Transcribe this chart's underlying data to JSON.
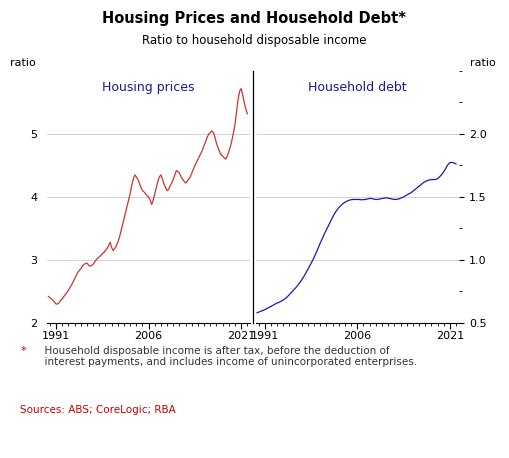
{
  "title": "Housing Prices and Household Debt*",
  "subtitle": "Ratio to household disposable income",
  "left_label": "ratio",
  "right_label": "ratio",
  "left_panel_title": "Housing prices",
  "right_panel_title": "Household debt",
  "footnote_star": "*",
  "footnote_text": "  Household disposable income is after tax, before the deduction of\n  interest payments, and includes income of unincorporated enterprises.",
  "sources": "Sources: ABS; CoreLogic; RBA",
  "left_color": "#cc3333",
  "right_color": "#1a1aaa",
  "left_ylim": [
    2.0,
    6.0
  ],
  "right_ylim": [
    0.5,
    2.5
  ],
  "left_yticks": [
    2,
    3,
    4,
    5
  ],
  "right_yticks": [
    0.5,
    1.0,
    1.5,
    2.0
  ],
  "xlim": [
    1989.5,
    2022.5
  ],
  "xticks": [
    1991,
    2006,
    2021
  ],
  "housing_prices_years": [
    1989.75,
    1990.0,
    1990.25,
    1990.5,
    1990.75,
    1991.0,
    1991.25,
    1991.5,
    1991.75,
    1992.0,
    1992.25,
    1992.5,
    1992.75,
    1993.0,
    1993.25,
    1993.5,
    1993.75,
    1994.0,
    1994.25,
    1994.5,
    1994.75,
    1995.0,
    1995.25,
    1995.5,
    1995.75,
    1996.0,
    1996.25,
    1996.5,
    1996.75,
    1997.0,
    1997.25,
    1997.5,
    1997.75,
    1998.0,
    1998.25,
    1998.5,
    1998.75,
    1999.0,
    1999.25,
    1999.5,
    1999.75,
    2000.0,
    2000.25,
    2000.5,
    2000.75,
    2001.0,
    2001.25,
    2001.5,
    2001.75,
    2002.0,
    2002.25,
    2002.5,
    2002.75,
    2003.0,
    2003.25,
    2003.5,
    2003.75,
    2004.0,
    2004.25,
    2004.5,
    2004.75,
    2005.0,
    2005.25,
    2005.5,
    2005.75,
    2006.0,
    2006.25,
    2006.5,
    2006.75,
    2007.0,
    2007.25,
    2007.5,
    2007.75,
    2008.0,
    2008.25,
    2008.5,
    2008.75,
    2009.0,
    2009.25,
    2009.5,
    2009.75,
    2010.0,
    2010.25,
    2010.5,
    2010.75,
    2011.0,
    2011.25,
    2011.5,
    2011.75,
    2012.0,
    2012.25,
    2012.5,
    2012.75,
    2013.0,
    2013.25,
    2013.5,
    2013.75,
    2014.0,
    2014.25,
    2014.5,
    2014.75,
    2015.0,
    2015.25,
    2015.5,
    2015.75,
    2016.0,
    2016.25,
    2016.5,
    2016.75,
    2017.0,
    2017.25,
    2017.5,
    2017.75,
    2018.0,
    2018.25,
    2018.5,
    2018.75,
    2019.0,
    2019.25,
    2019.5,
    2019.75,
    2020.0,
    2020.25,
    2020.5,
    2020.75,
    2021.0,
    2021.25,
    2021.5,
    2021.75,
    2022.0
  ],
  "housing_prices_values": [
    2.42,
    2.4,
    2.38,
    2.36,
    2.33,
    2.3,
    2.3,
    2.32,
    2.36,
    2.38,
    2.42,
    2.45,
    2.48,
    2.52,
    2.56,
    2.6,
    2.65,
    2.7,
    2.75,
    2.8,
    2.83,
    2.86,
    2.9,
    2.93,
    2.94,
    2.95,
    2.92,
    2.9,
    2.91,
    2.93,
    2.97,
    3.0,
    3.03,
    3.05,
    3.07,
    3.1,
    3.12,
    3.15,
    3.18,
    3.22,
    3.28,
    3.2,
    3.15,
    3.18,
    3.22,
    3.28,
    3.35,
    3.45,
    3.55,
    3.65,
    3.75,
    3.85,
    3.95,
    4.05,
    4.18,
    4.28,
    4.35,
    4.32,
    4.28,
    4.22,
    4.15,
    4.1,
    4.08,
    4.05,
    4.02,
    4.0,
    3.95,
    3.88,
    3.95,
    4.05,
    4.15,
    4.25,
    4.32,
    4.35,
    4.28,
    4.2,
    4.15,
    4.1,
    4.12,
    4.18,
    4.22,
    4.28,
    4.35,
    4.42,
    4.4,
    4.38,
    4.32,
    4.28,
    4.25,
    4.22,
    4.25,
    4.28,
    4.32,
    4.38,
    4.44,
    4.5,
    4.55,
    4.6,
    4.65,
    4.7,
    4.75,
    4.82,
    4.88,
    4.95,
    5.0,
    5.02,
    5.05,
    5.02,
    4.95,
    4.85,
    4.78,
    4.72,
    4.67,
    4.65,
    4.62,
    4.6,
    4.65,
    4.72,
    4.8,
    4.9,
    5.02,
    5.15,
    5.35,
    5.55,
    5.68,
    5.72,
    5.62,
    5.5,
    5.4,
    5.32
  ],
  "household_debt_years": [
    1989.75,
    1990.0,
    1990.25,
    1990.5,
    1990.75,
    1991.0,
    1991.25,
    1991.5,
    1991.75,
    1992.0,
    1992.25,
    1992.5,
    1992.75,
    1993.0,
    1993.25,
    1993.5,
    1993.75,
    1994.0,
    1994.25,
    1994.5,
    1994.75,
    1995.0,
    1995.25,
    1995.5,
    1995.75,
    1996.0,
    1996.25,
    1996.5,
    1996.75,
    1997.0,
    1997.25,
    1997.5,
    1997.75,
    1998.0,
    1998.25,
    1998.5,
    1998.75,
    1999.0,
    1999.25,
    1999.5,
    1999.75,
    2000.0,
    2000.25,
    2000.5,
    2000.75,
    2001.0,
    2001.25,
    2001.5,
    2001.75,
    2002.0,
    2002.25,
    2002.5,
    2002.75,
    2003.0,
    2003.25,
    2003.5,
    2003.75,
    2004.0,
    2004.25,
    2004.5,
    2004.75,
    2005.0,
    2005.25,
    2005.5,
    2005.75,
    2006.0,
    2006.25,
    2006.5,
    2006.75,
    2007.0,
    2007.25,
    2007.5,
    2007.75,
    2008.0,
    2008.25,
    2008.5,
    2008.75,
    2009.0,
    2009.25,
    2009.5,
    2009.75,
    2010.0,
    2010.25,
    2010.5,
    2010.75,
    2011.0,
    2011.25,
    2011.5,
    2011.75,
    2012.0,
    2012.25,
    2012.5,
    2012.75,
    2013.0,
    2013.25,
    2013.5,
    2013.75,
    2014.0,
    2014.25,
    2014.5,
    2014.75,
    2015.0,
    2015.25,
    2015.5,
    2015.75,
    2016.0,
    2016.25,
    2016.5,
    2016.75,
    2017.0,
    2017.25,
    2017.5,
    2017.75,
    2018.0,
    2018.25,
    2018.5,
    2018.75,
    2019.0,
    2019.25,
    2019.5,
    2019.75,
    2020.0,
    2020.25,
    2020.5,
    2020.75,
    2021.0,
    2021.25,
    2021.5,
    2021.75,
    2022.0
  ],
  "household_debt_values": [
    0.58,
    0.585,
    0.59,
    0.595,
    0.6,
    0.605,
    0.612,
    0.618,
    0.625,
    0.63,
    0.638,
    0.645,
    0.652,
    0.658,
    0.662,
    0.668,
    0.675,
    0.682,
    0.69,
    0.7,
    0.712,
    0.725,
    0.738,
    0.752,
    0.765,
    0.778,
    0.792,
    0.808,
    0.825,
    0.842,
    0.862,
    0.882,
    0.905,
    0.928,
    0.95,
    0.972,
    0.996,
    1.02,
    1.048,
    1.075,
    1.105,
    1.135,
    1.162,
    1.188,
    1.215,
    1.24,
    1.265,
    1.29,
    1.315,
    1.34,
    1.362,
    1.382,
    1.4,
    1.415,
    1.428,
    1.44,
    1.45,
    1.458,
    1.465,
    1.47,
    1.475,
    1.478,
    1.48,
    1.48,
    1.48,
    1.48,
    1.48,
    1.478,
    1.478,
    1.478,
    1.48,
    1.482,
    1.485,
    1.488,
    1.488,
    1.485,
    1.482,
    1.48,
    1.48,
    1.482,
    1.485,
    1.488,
    1.49,
    1.492,
    1.492,
    1.49,
    1.488,
    1.485,
    1.482,
    1.48,
    1.48,
    1.482,
    1.485,
    1.49,
    1.495,
    1.5,
    1.508,
    1.515,
    1.522,
    1.528,
    1.535,
    1.545,
    1.555,
    1.565,
    1.575,
    1.585,
    1.595,
    1.605,
    1.615,
    1.622,
    1.628,
    1.632,
    1.635,
    1.638,
    1.638,
    1.638,
    1.64,
    1.645,
    1.655,
    1.668,
    1.682,
    1.7,
    1.72,
    1.742,
    1.76,
    1.772,
    1.775,
    1.772,
    1.768,
    1.762
  ]
}
